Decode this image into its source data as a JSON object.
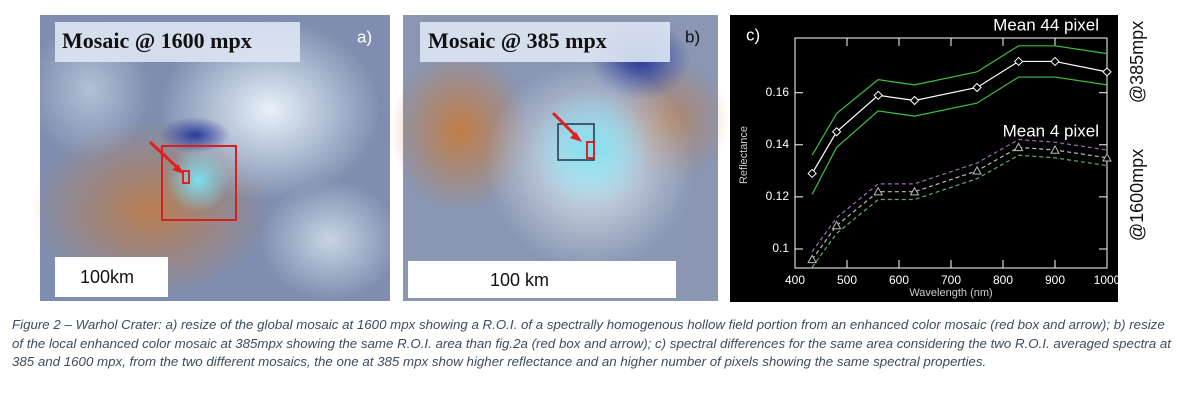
{
  "panel_a": {
    "title": "Mosaic @ 1600 mpx",
    "tag": "a)",
    "scale": "100km"
  },
  "panel_b": {
    "title": "Mosaic @ 385 mpx",
    "tag": "b)",
    "scale": "100 km"
  },
  "chart_data": {
    "type": "line",
    "tag": "c)",
    "xlabel": "Wavelength (nm)",
    "ylabel": "Reflectance",
    "side_labels": [
      "@385mpx",
      "@1600mpx"
    ],
    "x": [
      433,
      480,
      560,
      630,
      750,
      830,
      900,
      1000
    ],
    "series": [
      {
        "name": "Mean 44 pixel",
        "color": "#ffffff",
        "marker": "diamond",
        "values": [
          0.129,
          0.145,
          0.159,
          0.157,
          0.162,
          0.172,
          0.172,
          0.168
        ]
      },
      {
        "color": "#3fbf3f",
        "values": [
          0.136,
          0.152,
          0.165,
          0.163,
          0.168,
          0.178,
          0.178,
          0.175
        ]
      },
      {
        "color": "#3fbf3f",
        "values": [
          0.121,
          0.139,
          0.153,
          0.151,
          0.156,
          0.166,
          0.166,
          0.163
        ]
      },
      {
        "name": "Mean 4 pixel",
        "color": "#bbbbbb",
        "marker": "triangle",
        "dash": true,
        "values": [
          0.096,
          0.109,
          0.122,
          0.122,
          0.13,
          0.139,
          0.138,
          0.135
        ]
      },
      {
        "color": "#9a6fb0",
        "dash": true,
        "values": [
          0.099,
          0.112,
          0.125,
          0.125,
          0.133,
          0.142,
          0.141,
          0.138
        ]
      },
      {
        "color": "#5fae6f",
        "dash": true,
        "values": [
          0.093,
          0.106,
          0.119,
          0.119,
          0.127,
          0.136,
          0.135,
          0.132
        ]
      }
    ],
    "xlim": [
      400,
      1000
    ],
    "xticks": [
      400,
      500,
      600,
      700,
      800,
      900,
      1000
    ],
    "ylim": [
      0.0927,
      0.181
    ],
    "yticks": [
      0.1,
      0.12,
      0.14,
      0.16
    ]
  },
  "caption": "Figure 2 – Warhol Crater: a) resize of the global mosaic at 1600 mpx showing a R.O.I. of a spectrally homogenous hollow field portion from an enhanced color mosaic (red box and arrow); b) resize of the local enhanced color mosaic at 385mpx showing the same R.O.I. area than fig.2a (red box and arrow); c) spectral differences for the same area considering the two R.O.I. averaged spectra at 385 and 1600 mpx, from the two different mosaics, the one at 385 mpx show higher reflectance and an higher number of pixels showing the same spectral properties."
}
